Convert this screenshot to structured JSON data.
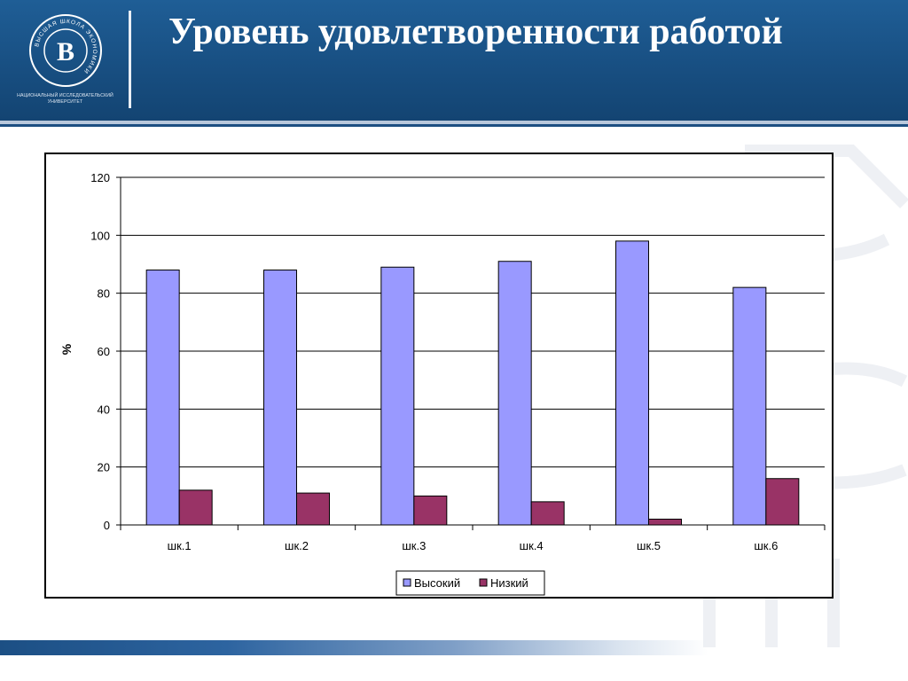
{
  "slide": {
    "title": "Уровень удовлетворенности работой",
    "logo_caption": "НАЦИОНАЛЬНЫЙ ИССЛЕДОВАТЕЛЬСКИЙ УНИВЕРСИТЕТ",
    "logo_ring_text": "ВЫСШАЯ ШКОЛА ЭКОНОМИКИ",
    "logo_monogram": "В",
    "colors": {
      "header": "#1a5289",
      "accent": "#ffffff"
    }
  },
  "chart_data": {
    "type": "bar",
    "title": "",
    "xlabel": "",
    "ylabel": "%",
    "ylim": [
      0,
      120
    ],
    "yticks": [
      0,
      20,
      40,
      60,
      80,
      100,
      120
    ],
    "grid": true,
    "legend_position": "bottom",
    "categories": [
      "шк.1",
      "шк.2",
      "шк.3",
      "шк.4",
      "шк.5",
      "шк.6"
    ],
    "series": [
      {
        "name": "Высокий",
        "color": "#9999ff",
        "values": [
          88,
          88,
          89,
          91,
          98,
          82
        ]
      },
      {
        "name": "Низкий",
        "color": "#993366",
        "values": [
          12,
          11,
          10,
          8,
          2,
          16
        ]
      }
    ]
  }
}
